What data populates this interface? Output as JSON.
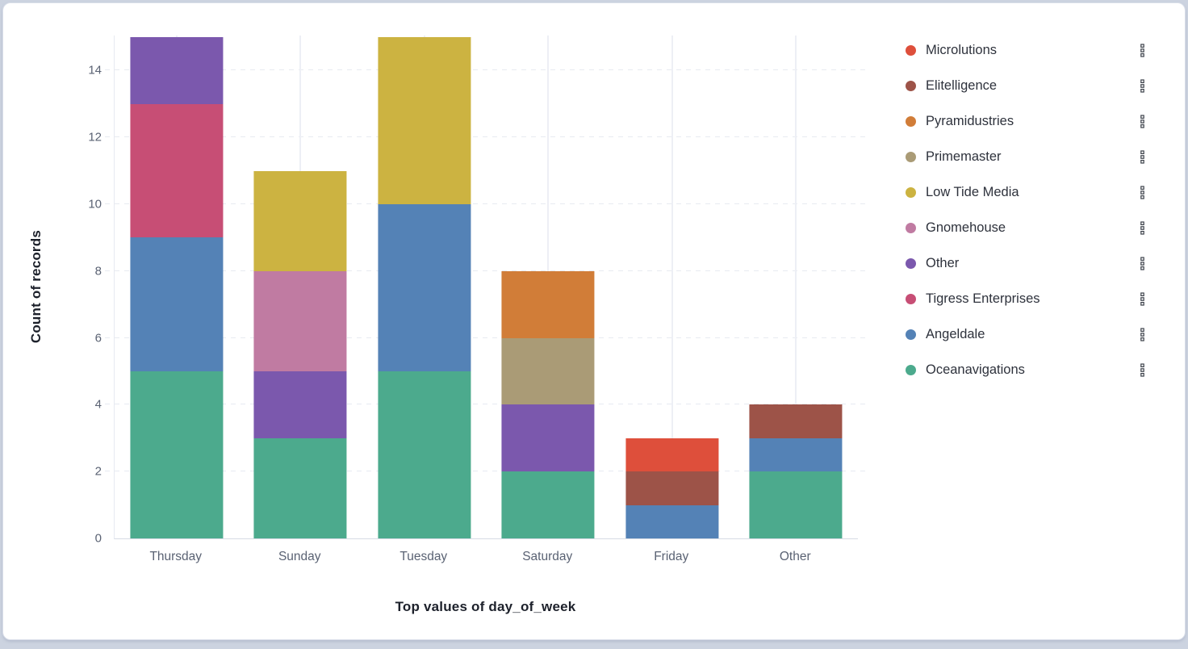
{
  "page": {
    "background_color": "#ccd3e0",
    "panel_background": "#ffffff",
    "panel_border_color": "#d9dee9"
  },
  "chart_data": {
    "type": "bar",
    "stacked": true,
    "title": "",
    "xlabel": "Top values of day_of_week",
    "ylabel": "Count of records",
    "categories": [
      "Thursday",
      "Sunday",
      "Tuesday",
      "Saturday",
      "Friday",
      "Other"
    ],
    "yticks": [
      0,
      2,
      4,
      6,
      8,
      10,
      12,
      14
    ],
    "ylim": [
      0,
      15.05
    ],
    "grid": true,
    "legend_position": "right",
    "stack_order_note": "stacked bottom-to-top in reverse legend order (Oceanavigations at bottom)",
    "category_totals": {
      "Thursday": 15,
      "Sunday": 11,
      "Tuesday": 15,
      "Saturday": 8,
      "Friday": 3,
      "Other": 4
    },
    "series": [
      {
        "name": "Microlutions",
        "color": "#DE4F3B",
        "values": [
          0,
          0,
          0,
          0,
          1,
          0
        ]
      },
      {
        "name": "Elitelligence",
        "color": "#9D5348",
        "values": [
          0,
          0,
          0,
          0,
          1,
          1
        ]
      },
      {
        "name": "Pyramidustries",
        "color": "#D17D38",
        "values": [
          0,
          0,
          0,
          2,
          0,
          0
        ]
      },
      {
        "name": "Primemaster",
        "color": "#AA9B76",
        "values": [
          0,
          0,
          0,
          2,
          0,
          0
        ]
      },
      {
        "name": "Low Tide Media",
        "color": "#CCB341",
        "values": [
          0,
          3,
          5,
          0,
          0,
          0
        ]
      },
      {
        "name": "Gnomehouse",
        "color": "#C07BA2",
        "values": [
          0,
          3,
          0,
          0,
          0,
          0
        ]
      },
      {
        "name": "Other",
        "color": "#7B58AD",
        "values": [
          2,
          2,
          0,
          2,
          0,
          0
        ]
      },
      {
        "name": "Tigress Enterprises",
        "color": "#C74E75",
        "values": [
          4,
          0,
          0,
          0,
          0,
          0
        ]
      },
      {
        "name": "Angeldale",
        "color": "#5482B6",
        "values": [
          4,
          0,
          5,
          0,
          1,
          1
        ]
      },
      {
        "name": "Oceanavigations",
        "color": "#4CAA8D",
        "values": [
          5,
          3,
          5,
          2,
          0,
          2
        ]
      }
    ]
  },
  "legend_ui": {
    "action_icon_name": "boxes-vertical-icon",
    "action_icon_color": "#3b4049"
  },
  "axis_style": {
    "tick_label_color": "#5a6273",
    "title_color": "#1d212b",
    "h_grid_color": "#e7eaf1",
    "v_grid_color": "#edeff5"
  }
}
